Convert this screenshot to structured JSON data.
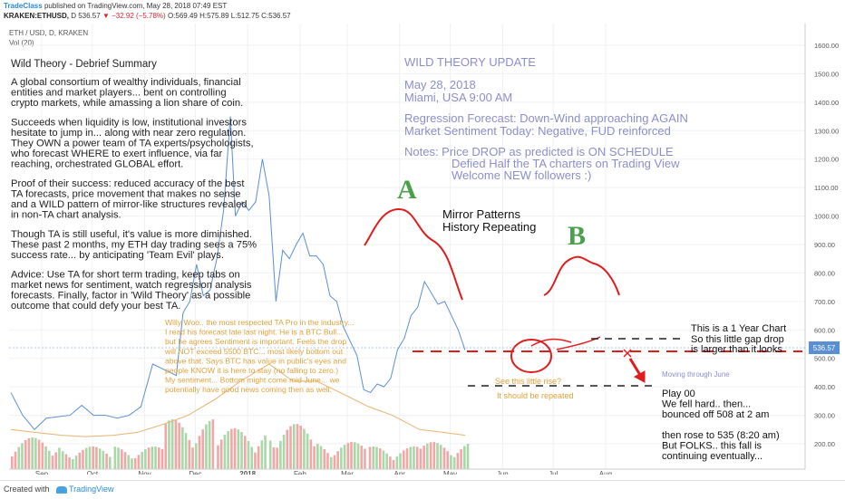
{
  "header": {
    "author": "TradeClass",
    "published_text": "published on TradingView.com, May 28, 2018 07:49 EST",
    "symbol": "KRAKEN:ETHUSD,",
    "last": "D 536.57",
    "change_arrow": "▼",
    "change": "−32.92 (−5.78%)",
    "ohlc": "O:569.49 H:575.89 L:512.75 C:536.57"
  },
  "pane": {
    "instrument": "ETH / USD, D, KRAKEN",
    "volume_label": "Vol (20)"
  },
  "colors": {
    "price_line": "#5b8fd3",
    "annotation_red": "#e01d1d",
    "summary_blue": "#8b8fc9",
    "orange_text": "#e0a23a",
    "green_letter": "#4aa04a"
  },
  "chart_data": {
    "type": "line",
    "title": "",
    "xlabel": "",
    "ylabel": "",
    "x_tick_labels": [
      "Sep",
      "Oct",
      "Nov",
      "Dec",
      "2018",
      "Feb",
      "Mar",
      "Apr",
      "May",
      "Jun",
      "Jul",
      "Aug"
    ],
    "y_tick_labels": [
      "200.00",
      "300.00",
      "400.00",
      "500.00",
      "600.00",
      "700.00",
      "800.00",
      "900.00",
      "1000.00",
      "1100.00",
      "1200.00",
      "1300.00",
      "1400.00",
      "1500.00",
      "1600.00"
    ],
    "ylim": [
      130,
      1620
    ],
    "last_price": "536.57",
    "series": [
      {
        "x": [
          "Sep 1",
          "Sep 8",
          "Sep 15",
          "Sep 22",
          "Sep 29",
          "Oct 6",
          "Oct 13",
          "Oct 20",
          "Oct 27",
          "Nov 3",
          "Nov 10",
          "Nov 17",
          "Nov 24",
          "Dec 1",
          "Dec 8",
          "Dec 12",
          "Dec 16",
          "Dec 20",
          "Dec 24",
          "Dec 28",
          "Jan 1",
          "Jan 5",
          "Jan 9",
          "Jan 12",
          "Jan 16",
          "Jan 20",
          "Jan 24",
          "Jan 28",
          "Feb 1",
          "Feb 5",
          "Feb 9",
          "Feb 13",
          "Feb 17",
          "Feb 21",
          "Feb 25",
          "Mar 1",
          "Mar 5",
          "Mar 9",
          "Mar 13",
          "Mar 17",
          "Mar 21",
          "Mar 25",
          "Mar 29",
          "Apr 2",
          "Apr 6",
          "Apr 10",
          "Apr 14",
          "Apr 18",
          "Apr 22",
          "Apr 26",
          "Apr 30",
          "May 4",
          "May 8",
          "May 12",
          "May 16",
          "May 20",
          "May 24",
          "May 28"
        ],
        "values": [
          380,
          300,
          250,
          290,
          295,
          300,
          335,
          300,
          300,
          290,
          300,
          330,
          480,
          460,
          440,
          660,
          700,
          830,
          720,
          740,
          850,
          1020,
          1350,
          1000,
          1050,
          1020,
          1050,
          1200,
          1070,
          700,
          880,
          850,
          900,
          940,
          860,
          860,
          830,
          720,
          700,
          610,
          560,
          510,
          390,
          380,
          410,
          400,
          430,
          530,
          570,
          650,
          680,
          770,
          730,
          690,
          700,
          650,
          600,
          530
        ]
      },
      {
        "name": "",
        "x": [
          "Sep 1",
          "Sep 15",
          "Oct 1",
          "Oct 15",
          "Nov 1",
          "Nov 15",
          "Dec 1",
          "Dec 15",
          "Jan 1",
          "Jan 15",
          "Feb 1",
          "Feb 15",
          "Mar 1",
          "Mar 15",
          "Apr 1",
          "Apr 15",
          "May 1",
          "May 15",
          "May 28"
        ],
        "values": [
          250,
          240,
          230,
          225,
          230,
          240,
          270,
          300,
          360,
          420,
          480,
          420,
          420,
          380,
          330,
          300,
          250,
          240,
          230
        ]
      }
    ],
    "volume": {
      "x": [
        "Sep",
        "Oct",
        "Nov",
        "Dec",
        "2018",
        "Feb",
        "Mar",
        "Apr",
        "May"
      ],
      "values": [
        35,
        25,
        25,
        55,
        45,
        50,
        30,
        25,
        30
      ]
    }
  },
  "left_note": {
    "title": "Wild Theory - Debrief Summary",
    "paragraphs": [
      [
        "A global consortium of wealthy individuals, financial",
        "entities and market players... bent on controlling",
        "crypto markets, while amassing a lion share of coin."
      ],
      [
        "Succeeds when liquidity is low, institutional investors",
        "hesitate to jump in... along with near zero regulation.",
        "They OWN a power team of TA experts/psychologists,",
        "who forecast WHERE to exert influence, via far",
        "reaching, orchestrated GLOBAL effort."
      ],
      [
        "Proof of their success: reduced accuracy of the best",
        "TA forecasts, price movement that makes no sense",
        "and a WILD pattern of mirror-like structures revealed",
        "in non-TA chart analysis."
      ],
      [
        "Though TA is still useful, it's value is more diminished.",
        "These past 2 months, my ETH day trading sees a 75%",
        "success rate... by anticipating 'Team Evil' plays."
      ],
      [
        "Advice: Use TA for short term trading, keep tabs on",
        "market news for sentiment, watch regression analysis",
        "forecasts. Finally, factor in 'Wild Theory' as a possible",
        "outcome that could defy your best TA."
      ]
    ]
  },
  "update": {
    "title": "WILD THEORY UPDATE",
    "date": "May 28, 2018",
    "location": "Miami, USA 9:00 AM",
    "forecast": "Regression Forecast: Down-Wind approaching AGAIN",
    "sentiment": "Market Sentiment Today: Negative, FUD reinforced",
    "notes": [
      "Notes: Price DROP as predicted is ON SCHEDULE",
      "Defied Half the TA charters on Trading View",
      "Welcome NEW followers :)"
    ]
  },
  "labels": {
    "a": "A",
    "b": "B",
    "mirror": [
      "Mirror Patterns",
      "History Repeating"
    ],
    "one_year": [
      "This is a 1 Year Chart",
      "So this little gap drop",
      "is larger than it looks"
    ],
    "moving": "Moving through June",
    "play": [
      "Play 00",
      "We fell hard.. then...",
      "bounced off 508 at 2 am",
      "",
      "then rose to 535 (8:20 am)",
      "But FOLKS.. this fall is",
      "continuing eventually..."
    ],
    "see_rise": "See this little rise?",
    "repeated": "It should be repeated",
    "willy": [
      "Willy Woo.. the most respected TA Pro in the industry...",
      "I read his forecast late last night. He is a BTC Bull...",
      "but he agrees Sentiment is important. Feels the drop",
      "will NOT exceed 5500 BTC... most likely bottom out",
      "above that. Says BTC has value in public's eyes and",
      "people KNOW it is here to stay (no falling to zero.)",
      "My sentiment... Bottom might come mid June... we",
      "potentially have good news coming then as well."
    ]
  },
  "footer": {
    "created_with": "Created with",
    "brand": "TradingView"
  }
}
